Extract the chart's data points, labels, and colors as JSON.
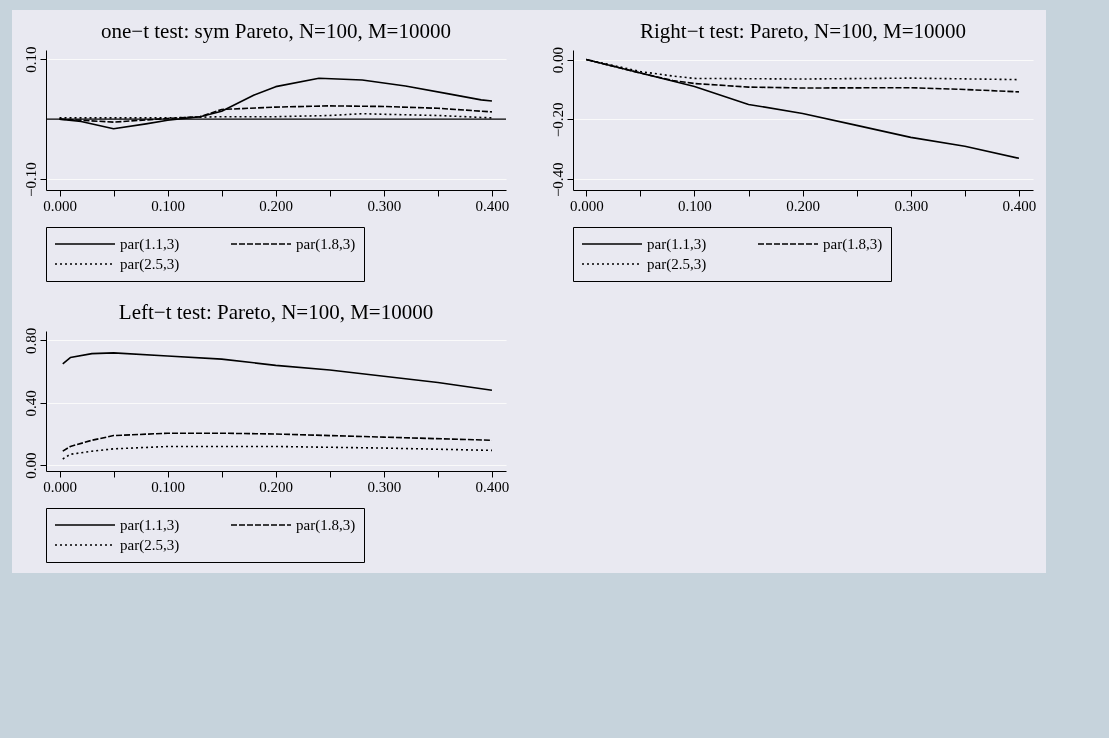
{
  "chart_data": [
    {
      "type": "line",
      "title": "one−t test: sym Pareto, N=100, M=10000",
      "xlim": [
        -0.0125,
        0.413
      ],
      "ylim": [
        -0.118,
        0.115
      ],
      "xticks": [
        {
          "value": 0,
          "label": "0.000"
        },
        {
          "value": 0.05,
          "label": null
        },
        {
          "value": 0.1,
          "label": "0.100"
        },
        {
          "value": 0.15,
          "label": null
        },
        {
          "value": 0.2,
          "label": "0.200"
        },
        {
          "value": 0.25,
          "label": null
        },
        {
          "value": 0.3,
          "label": "0.300"
        },
        {
          "value": 0.35,
          "label": null
        },
        {
          "value": 0.4,
          "label": "0.400"
        }
      ],
      "yticks": [
        {
          "value": -0.1,
          "label": "−0.10"
        },
        {
          "value": 0.1,
          "label": "0.10"
        }
      ],
      "grid": "y",
      "legend": "bottom",
      "ref_lines": [
        {
          "axis": "y",
          "value": 0
        }
      ],
      "series": [
        {
          "name": "par(1.1,3)",
          "color": "#000000",
          "line_style": "solid",
          "x": [
            0,
            0.02,
            0.05,
            0.08,
            0.1,
            0.13,
            0.15,
            0.18,
            0.2,
            0.24,
            0.28,
            0.32,
            0.36,
            0.39,
            0.4
          ],
          "values": [
            0,
            -0.004,
            -0.016,
            -0.008,
            -0.002,
            0.004,
            0.013,
            0.04,
            0.054,
            0.068,
            0.065,
            0.055,
            0.042,
            0.032,
            0.03
          ]
        },
        {
          "name": "par(1.8,3)",
          "color": "#000000",
          "line_style": "dashed",
          "x": [
            0,
            0.05,
            0.1,
            0.13,
            0.15,
            0.2,
            0.25,
            0.3,
            0.35,
            0.4
          ],
          "values": [
            0,
            -0.005,
            0.001,
            0.004,
            0.016,
            0.02,
            0.022,
            0.021,
            0.018,
            0.012
          ]
        },
        {
          "name": "par(2.5,3)",
          "color": "#000000",
          "line_style": "dotted",
          "x": [
            0,
            0.05,
            0.1,
            0.15,
            0.2,
            0.25,
            0.28,
            0.3,
            0.35,
            0.4
          ],
          "values": [
            0.002,
            0.002,
            0.002,
            0.004,
            0.004,
            0.006,
            0.009,
            0.008,
            0.006,
            0.002
          ]
        }
      ]
    },
    {
      "type": "line",
      "title": "Right−t test:  Pareto, N=100, M=10000",
      "xlim": [
        -0.0123,
        0.413
      ],
      "ylim": [
        -0.436,
        0.032
      ],
      "xticks": [
        {
          "value": 0,
          "label": "0.000"
        },
        {
          "value": 0.05,
          "label": null
        },
        {
          "value": 0.1,
          "label": "0.100"
        },
        {
          "value": 0.15,
          "label": null
        },
        {
          "value": 0.2,
          "label": "0.200"
        },
        {
          "value": 0.25,
          "label": null
        },
        {
          "value": 0.3,
          "label": "0.300"
        },
        {
          "value": 0.35,
          "label": null
        },
        {
          "value": 0.4,
          "label": "0.400"
        }
      ],
      "yticks": [
        {
          "value": -0.4,
          "label": "−0.40"
        },
        {
          "value": -0.2,
          "label": "−0.20"
        },
        {
          "value": 0,
          "label": "0.00"
        }
      ],
      "grid": "y",
      "legend": "bottom",
      "series": [
        {
          "name": "par(1.1,3)",
          "color": "#000000",
          "line_style": "solid",
          "x": [
            0,
            0.05,
            0.1,
            0.15,
            0.2,
            0.25,
            0.3,
            0.35,
            0.4
          ],
          "values": [
            0,
            -0.045,
            -0.09,
            -0.15,
            -0.18,
            -0.22,
            -0.26,
            -0.29,
            -0.33
          ]
        },
        {
          "name": "par(1.8,3)",
          "color": "#000000",
          "line_style": "dashed",
          "x": [
            0,
            0.05,
            0.08,
            0.1,
            0.15,
            0.2,
            0.3,
            0.35,
            0.4
          ],
          "values": [
            0,
            -0.045,
            -0.07,
            -0.08,
            -0.092,
            -0.095,
            -0.094,
            -0.1,
            -0.108
          ]
        },
        {
          "name": "par(2.5,3)",
          "color": "#000000",
          "line_style": "dotted",
          "x": [
            0,
            0.05,
            0.08,
            0.1,
            0.2,
            0.3,
            0.4
          ],
          "values": [
            0,
            -0.04,
            -0.055,
            -0.063,
            -0.065,
            -0.062,
            -0.067
          ]
        }
      ]
    },
    {
      "type": "line",
      "title": "Left−t test:  Pareto, N=100, M=10000",
      "xlim": [
        -0.0125,
        0.413
      ],
      "ylim": [
        -0.037,
        0.86
      ],
      "xticks": [
        {
          "value": 0,
          "label": "0.000"
        },
        {
          "value": 0.05,
          "label": null
        },
        {
          "value": 0.1,
          "label": "0.100"
        },
        {
          "value": 0.15,
          "label": null
        },
        {
          "value": 0.2,
          "label": "0.200"
        },
        {
          "value": 0.25,
          "label": null
        },
        {
          "value": 0.3,
          "label": "0.300"
        },
        {
          "value": 0.35,
          "label": null
        },
        {
          "value": 0.4,
          "label": "0.400"
        }
      ],
      "yticks": [
        {
          "value": 0,
          "label": "0.00"
        },
        {
          "value": 0.4,
          "label": "0.40"
        },
        {
          "value": 0.8,
          "label": "0.80"
        }
      ],
      "grid": "y",
      "legend": "bottom",
      "series": [
        {
          "name": "par(1.1,3)",
          "color": "#000000",
          "line_style": "solid",
          "x": [
            0.003,
            0.01,
            0.03,
            0.05,
            0.1,
            0.15,
            0.2,
            0.25,
            0.3,
            0.35,
            0.4
          ],
          "values": [
            0.65,
            0.69,
            0.715,
            0.72,
            0.7,
            0.68,
            0.64,
            0.61,
            0.57,
            0.53,
            0.48
          ]
        },
        {
          "name": "par(1.8,3)",
          "color": "#000000",
          "line_style": "dashed",
          "x": [
            0.003,
            0.01,
            0.03,
            0.05,
            0.1,
            0.15,
            0.2,
            0.3,
            0.4
          ],
          "values": [
            0.09,
            0.12,
            0.16,
            0.19,
            0.205,
            0.205,
            0.2,
            0.18,
            0.16
          ]
        },
        {
          "name": "par(2.5,3)",
          "color": "#000000",
          "line_style": "dotted",
          "x": [
            0.003,
            0.01,
            0.03,
            0.05,
            0.1,
            0.2,
            0.3,
            0.4
          ],
          "values": [
            0.04,
            0.07,
            0.09,
            0.105,
            0.12,
            0.12,
            0.11,
            0.095
          ]
        }
      ]
    }
  ]
}
